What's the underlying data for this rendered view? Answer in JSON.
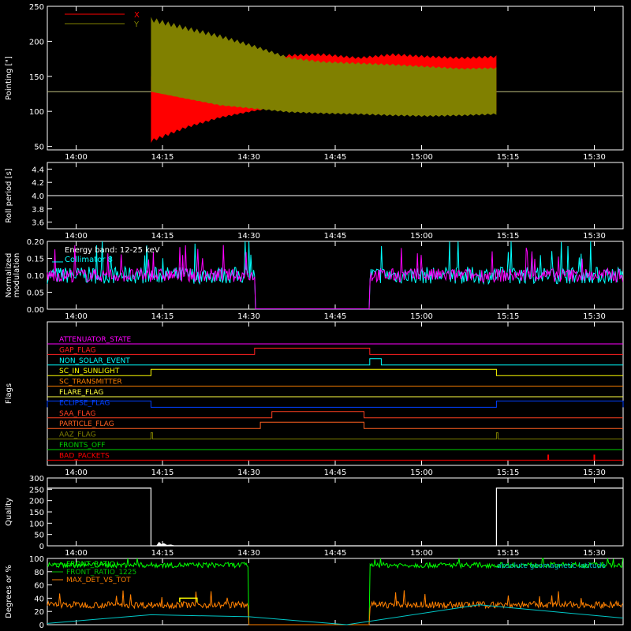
{
  "x_ticks": [
    "14:00",
    "14:15",
    "14:30",
    "14:45",
    "15:00",
    "15:15",
    "15:30"
  ],
  "chart_data": [
    {
      "type": "area",
      "ylabel": "Pointing [\"]",
      "ylim": [
        45,
        250
      ],
      "yticks": [
        "50",
        "100",
        "150",
        "200",
        "250"
      ],
      "legend": [
        {
          "name": "X",
          "color": "#ff0000"
        },
        {
          "name": "Y",
          "color": "#808000"
        }
      ],
      "series": [
        {
          "name": "X",
          "color": "#ff0000",
          "start": "14:13",
          "end": "15:13",
          "baseline": 128,
          "upper": [
            [
              0,
              150
            ],
            [
              10,
              160
            ],
            [
              20,
              165
            ],
            [
              30,
              170
            ],
            [
              40,
              182
            ],
            [
              50,
              183
            ],
            [
              60,
              178
            ],
            [
              70,
              183
            ],
            [
              80,
              180
            ],
            [
              90,
              178
            ],
            [
              100,
              180
            ]
          ],
          "lower": [
            [
              0,
              55
            ],
            [
              10,
              75
            ],
            [
              20,
              90
            ],
            [
              30,
              100
            ],
            [
              40,
              107
            ],
            [
              50,
              105
            ],
            [
              60,
              100
            ],
            [
              70,
              97
            ],
            [
              80,
              100
            ],
            [
              90,
              102
            ],
            [
              100,
              100
            ]
          ]
        },
        {
          "name": "Y",
          "color": "#808000",
          "start": "14:13",
          "end": "15:13",
          "baseline": 128,
          "upper": [
            [
              0,
              235
            ],
            [
              10,
              222
            ],
            [
              20,
              210
            ],
            [
              30,
              195
            ],
            [
              40,
              178
            ],
            [
              50,
              172
            ],
            [
              60,
              170
            ],
            [
              70,
              168
            ],
            [
              80,
              165
            ],
            [
              90,
              162
            ],
            [
              100,
              163
            ]
          ],
          "lower": [
            [
              0,
              128
            ],
            [
              10,
              118
            ],
            [
              20,
              108
            ],
            [
              30,
              103
            ],
            [
              40,
              98
            ],
            [
              50,
              96
            ],
            [
              60,
              95
            ],
            [
              70,
              93
            ],
            [
              80,
              92
            ],
            [
              90,
              93
            ],
            [
              100,
              95
            ]
          ]
        }
      ]
    },
    {
      "type": "line",
      "ylabel": "Roll period [s]",
      "ylim": [
        3.5,
        4.5
      ],
      "yticks": [
        "3.6",
        "3.8",
        "4.0",
        "4.2",
        "4.4"
      ],
      "series": [
        {
          "color": "#ffffff",
          "x": [
            "13:55",
            "15:35"
          ],
          "y": [
            4.0,
            4.0
          ]
        }
      ]
    },
    {
      "type": "line",
      "ylabel": "Normalized modulation",
      "ylim": [
        0.0,
        0.2
      ],
      "yticks": [
        "0.00",
        "0.05",
        "0.10",
        "0.15",
        "0.20"
      ],
      "annotations": [
        "Energy band: 12-25 keV",
        "Collimator 8"
      ],
      "series": [
        {
          "name": "Collimator 8",
          "color": "#00ffff",
          "level": 0.1,
          "noise": 0.025,
          "gap": [
            "14:31",
            "14:51"
          ]
        },
        {
          "name": "",
          "color": "#ff00ff",
          "level": 0.1,
          "noise": 0.02,
          "gap": [
            "14:31",
            "14:51"
          ]
        }
      ]
    },
    {
      "type": "line",
      "ylabel": "Flags",
      "flags": [
        {
          "name": "ATTENUATOR_STATE",
          "color": "#ff00ff",
          "high": []
        },
        {
          "name": "GAP_FLAG",
          "color": "#ff2020",
          "high": [
            [
              "14:31",
              "14:51"
            ]
          ]
        },
        {
          "name": "NON_SOLAR_EVENT",
          "color": "#00ffff",
          "high": [
            [
              "14:51",
              "14:53"
            ]
          ]
        },
        {
          "name": "SC_IN_SUNLIGHT",
          "color": "#ffff00",
          "high": [
            [
              "14:13",
              "15:13"
            ]
          ]
        },
        {
          "name": "SC_TRANSMITTER",
          "color": "#ff8000",
          "high": []
        },
        {
          "name": "FLARE_FLAG",
          "color": "#ffff40",
          "high": []
        },
        {
          "name": "ECLIPSE_FLAG",
          "color": "#0040ff",
          "high": [
            [
              "13:55",
              "14:13"
            ],
            [
              "15:13",
              "15:35"
            ]
          ]
        },
        {
          "name": "SAA_FLAG",
          "color": "#ff4020",
          "high": [
            [
              "14:34",
              "14:50"
            ]
          ]
        },
        {
          "name": "PARTICLE_FLAG",
          "color": "#ff6020",
          "high": [
            [
              "14:32",
              "14:50"
            ]
          ]
        },
        {
          "name": "AAZ_FLAG",
          "color": "#808000",
          "high": [
            [
              "14:13",
              "14:13"
            ],
            [
              "15:13",
              "15:13"
            ]
          ]
        },
        {
          "name": "FRONTS_OFF",
          "color": "#00d000",
          "high": []
        },
        {
          "name": "BAD_PACKETS",
          "color": "#ff0000",
          "spikes": [
            "15:22",
            "15:30"
          ]
        }
      ]
    },
    {
      "type": "area",
      "ylabel": "Quality",
      "ylim": [
        0,
        300
      ],
      "yticks": [
        "0",
        "50",
        "100",
        "150",
        "200",
        "250",
        "300"
      ],
      "series": [
        {
          "color": "#ffffff",
          "steps": [
            [
              "13:55",
              255
            ],
            [
              "14:13",
              0
            ],
            [
              "15:13",
              255
            ],
            [
              "15:35",
              255
            ]
          ],
          "bumps": [
            "14:14",
            "14:15"
          ]
        }
      ]
    },
    {
      "type": "line",
      "ylabel": "Degrees or %",
      "ylim": [
        0,
        100
      ],
      "yticks": [
        "0",
        "20",
        "40",
        "60",
        "80",
        "100"
      ],
      "legend": [
        {
          "name": "FRONT_RATIO",
          "color": "#00ff00"
        },
        {
          "name": "FRONT_RATIO_1225",
          "color": "#00c000"
        },
        {
          "name": "MAX_DET_VS_TOT",
          "color": "#ff8000"
        }
      ],
      "annotation_right": "absolute geomagnetic latitude",
      "series": [
        {
          "name": "FRONT_RATIO",
          "color": "#00ff00",
          "level": 90,
          "noise": 4,
          "gap": [
            "14:30",
            "14:51"
          ]
        },
        {
          "name": "MAX_DET_VS_TOT",
          "color": "#ff8000",
          "level": 30,
          "noise": 5,
          "gap": [
            "14:30",
            "14:51"
          ]
        },
        {
          "name": "absolute geomagnetic latitude",
          "color": "#00c8c8",
          "x": [
            "13:55",
            "14:13",
            "14:30",
            "14:47",
            "15:10",
            "15:35"
          ],
          "y": [
            2,
            15,
            12,
            0,
            30,
            10
          ]
        }
      ]
    }
  ]
}
